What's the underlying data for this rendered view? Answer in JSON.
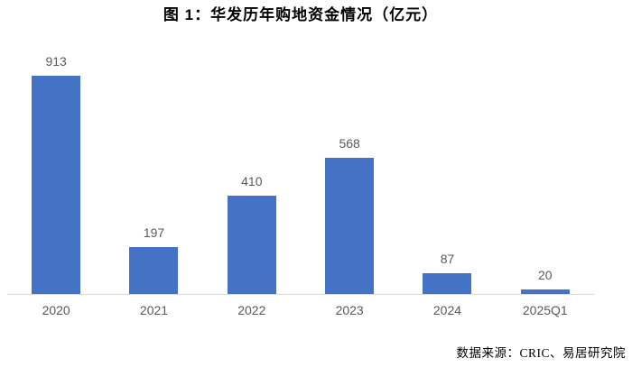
{
  "chart_data": {
    "type": "bar",
    "title": "图 1：华发历年购地资金情况（亿元）",
    "categories": [
      "2020",
      "2021",
      "2022",
      "2023",
      "2024",
      "2025Q1"
    ],
    "values": [
      913,
      197,
      410,
      568,
      87,
      20
    ],
    "xlabel": "",
    "ylabel": "",
    "ylim": [
      0,
      1000
    ],
    "grid": false,
    "legend": false,
    "data_labels": true,
    "source_note": "数据来源：CRIC、易居研究院"
  },
  "colors": {
    "bar": "#4472C4",
    "axis_line": "#D9D9D9",
    "data_label": "#595959",
    "category_label": "#595959",
    "title": "#000000",
    "background": "#FFFFFF"
  }
}
